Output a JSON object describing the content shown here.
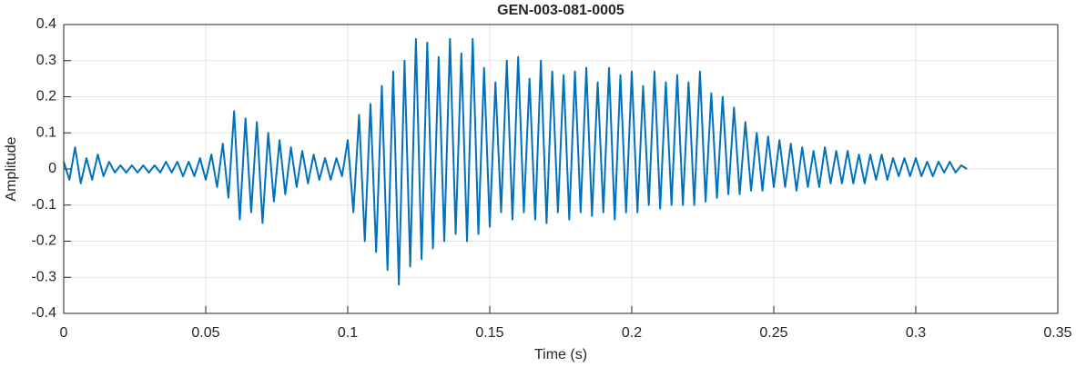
{
  "chart_data": {
    "type": "line",
    "title": "GEN-003-081-0005",
    "xlabel": "Time (s)",
    "ylabel": "Amplitude",
    "color": "#0072BD",
    "grid": true,
    "xlim": [
      0,
      0.35
    ],
    "xticks": [
      0,
      0.05,
      0.1,
      0.15,
      0.2,
      0.25,
      0.3,
      0.35
    ],
    "ylim": [
      -0.4,
      0.4
    ],
    "yticks": [
      -0.4,
      -0.3,
      -0.2,
      -0.1,
      0,
      0.1,
      0.2,
      0.3,
      0.4
    ],
    "x": [
      0,
      0.002,
      0.004,
      0.006,
      0.008,
      0.01,
      0.012,
      0.014,
      0.016,
      0.018,
      0.02,
      0.022,
      0.024,
      0.026,
      0.028,
      0.03,
      0.032,
      0.034,
      0.036,
      0.038,
      0.04,
      0.042,
      0.044,
      0.046,
      0.048,
      0.05,
      0.052,
      0.054,
      0.056,
      0.058,
      0.06,
      0.062,
      0.064,
      0.066,
      0.068,
      0.07,
      0.072,
      0.074,
      0.076,
      0.078,
      0.08,
      0.082,
      0.084,
      0.086,
      0.088,
      0.09,
      0.092,
      0.094,
      0.096,
      0.098,
      0.1,
      0.102,
      0.104,
      0.106,
      0.108,
      0.11,
      0.112,
      0.114,
      0.116,
      0.118,
      0.12,
      0.122,
      0.124,
      0.126,
      0.128,
      0.13,
      0.132,
      0.134,
      0.136,
      0.138,
      0.14,
      0.142,
      0.144,
      0.146,
      0.148,
      0.15,
      0.152,
      0.154,
      0.156,
      0.158,
      0.16,
      0.162,
      0.164,
      0.166,
      0.168,
      0.17,
      0.172,
      0.174,
      0.176,
      0.178,
      0.18,
      0.182,
      0.184,
      0.186,
      0.188,
      0.19,
      0.192,
      0.194,
      0.196,
      0.198,
      0.2,
      0.202,
      0.204,
      0.206,
      0.208,
      0.21,
      0.212,
      0.214,
      0.216,
      0.218,
      0.22,
      0.222,
      0.224,
      0.226,
      0.228,
      0.23,
      0.232,
      0.234,
      0.236,
      0.238,
      0.24,
      0.242,
      0.244,
      0.246,
      0.248,
      0.25,
      0.252,
      0.254,
      0.256,
      0.258,
      0.26,
      0.262,
      0.264,
      0.266,
      0.268,
      0.27,
      0.272,
      0.274,
      0.276,
      0.278,
      0.28,
      0.282,
      0.284,
      0.286,
      0.288,
      0.29,
      0.292,
      0.294,
      0.296,
      0.298,
      0.3,
      0.302,
      0.304,
      0.306,
      0.308,
      0.31,
      0.312,
      0.314,
      0.316,
      0.318
    ],
    "values": [
      0.02,
      -0.03,
      0.06,
      -0.04,
      0.03,
      -0.03,
      0.04,
      -0.02,
      0.02,
      -0.01,
      0.01,
      -0.01,
      0.01,
      -0.01,
      0.01,
      -0.01,
      0.01,
      -0.01,
      0.02,
      -0.01,
      0.02,
      -0.02,
      0.02,
      -0.02,
      0.03,
      -0.03,
      0.04,
      -0.05,
      0.07,
      -0.08,
      0.16,
      -0.14,
      0.14,
      -0.12,
      0.13,
      -0.15,
      0.1,
      -0.09,
      0.08,
      -0.07,
      0.06,
      -0.05,
      0.05,
      -0.04,
      0.04,
      -0.03,
      0.03,
      -0.03,
      0.03,
      -0.02,
      0.08,
      -0.12,
      0.15,
      -0.2,
      0.18,
      -0.23,
      0.23,
      -0.28,
      0.27,
      -0.32,
      0.3,
      -0.27,
      0.36,
      -0.25,
      0.35,
      -0.22,
      0.31,
      -0.2,
      0.36,
      -0.18,
      0.32,
      -0.2,
      0.36,
      -0.18,
      0.28,
      -0.16,
      0.24,
      -0.12,
      0.3,
      -0.14,
      0.31,
      -0.12,
      0.25,
      -0.14,
      0.3,
      -0.15,
      0.27,
      -0.12,
      0.26,
      -0.14,
      0.27,
      -0.12,
      0.28,
      -0.13,
      0.24,
      -0.12,
      0.28,
      -0.14,
      0.26,
      -0.12,
      0.27,
      -0.12,
      0.23,
      -0.1,
      0.27,
      -0.11,
      0.24,
      -0.1,
      0.26,
      -0.1,
      0.24,
      -0.1,
      0.27,
      -0.09,
      0.21,
      -0.08,
      0.2,
      -0.07,
      0.17,
      -0.07,
      0.13,
      -0.06,
      0.1,
      -0.06,
      0.09,
      -0.05,
      0.08,
      -0.05,
      0.07,
      -0.06,
      0.06,
      -0.05,
      0.05,
      -0.05,
      0.06,
      -0.04,
      0.05,
      -0.04,
      0.05,
      -0.04,
      0.04,
      -0.04,
      0.04,
      -0.03,
      0.04,
      -0.03,
      0.03,
      -0.02,
      0.03,
      -0.02,
      0.03,
      -0.02,
      0.02,
      -0.02,
      0.02,
      -0.01,
      0.02,
      -0.01,
      0.01,
      0
    ]
  }
}
